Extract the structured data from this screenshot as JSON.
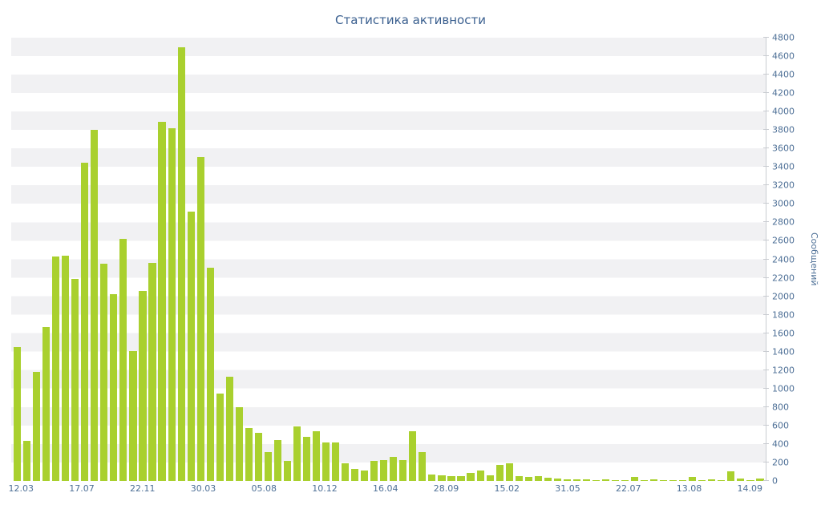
{
  "page": {
    "title": "Статистика активности"
  },
  "chart_data": {
    "type": "bar",
    "title": "Статистика активности",
    "xlabel": "",
    "ylabel": "Сообщений",
    "ylim": [
      0,
      4800
    ],
    "ytick_step": 200,
    "grid": "horizontal striped bands every 200",
    "legend": "none",
    "x_tick_labels": [
      "12.03",
      "17.07",
      "22.11",
      "30.03",
      "05.08",
      "10.12",
      "16.04",
      "28.09",
      "15.02",
      "31.05",
      "22.07",
      "13.08",
      "14.09"
    ],
    "values": [
      1450,
      430,
      1180,
      1670,
      2430,
      2440,
      2190,
      3450,
      3800,
      2350,
      2020,
      2620,
      1410,
      2060,
      2360,
      3890,
      3820,
      4700,
      2920,
      3510,
      2310,
      950,
      1130,
      800,
      570,
      520,
      310,
      440,
      220,
      590,
      480,
      540,
      420,
      420,
      190,
      130,
      110,
      220,
      230,
      260,
      230,
      540,
      310,
      70,
      60,
      50,
      50,
      90,
      110,
      60,
      170,
      190,
      50,
      45,
      50,
      35,
      25,
      20,
      15,
      15,
      10,
      15,
      10,
      10,
      45,
      10,
      15,
      10,
      10,
      10,
      45,
      10,
      20,
      10,
      100,
      30,
      10,
      25
    ],
    "colors": {
      "bar": "#a9d02e",
      "stripe": "#f1f1f3",
      "axis_text": "#4d6f96",
      "title": "#3a5f8f",
      "axis_line": "#c9ccd1"
    }
  }
}
